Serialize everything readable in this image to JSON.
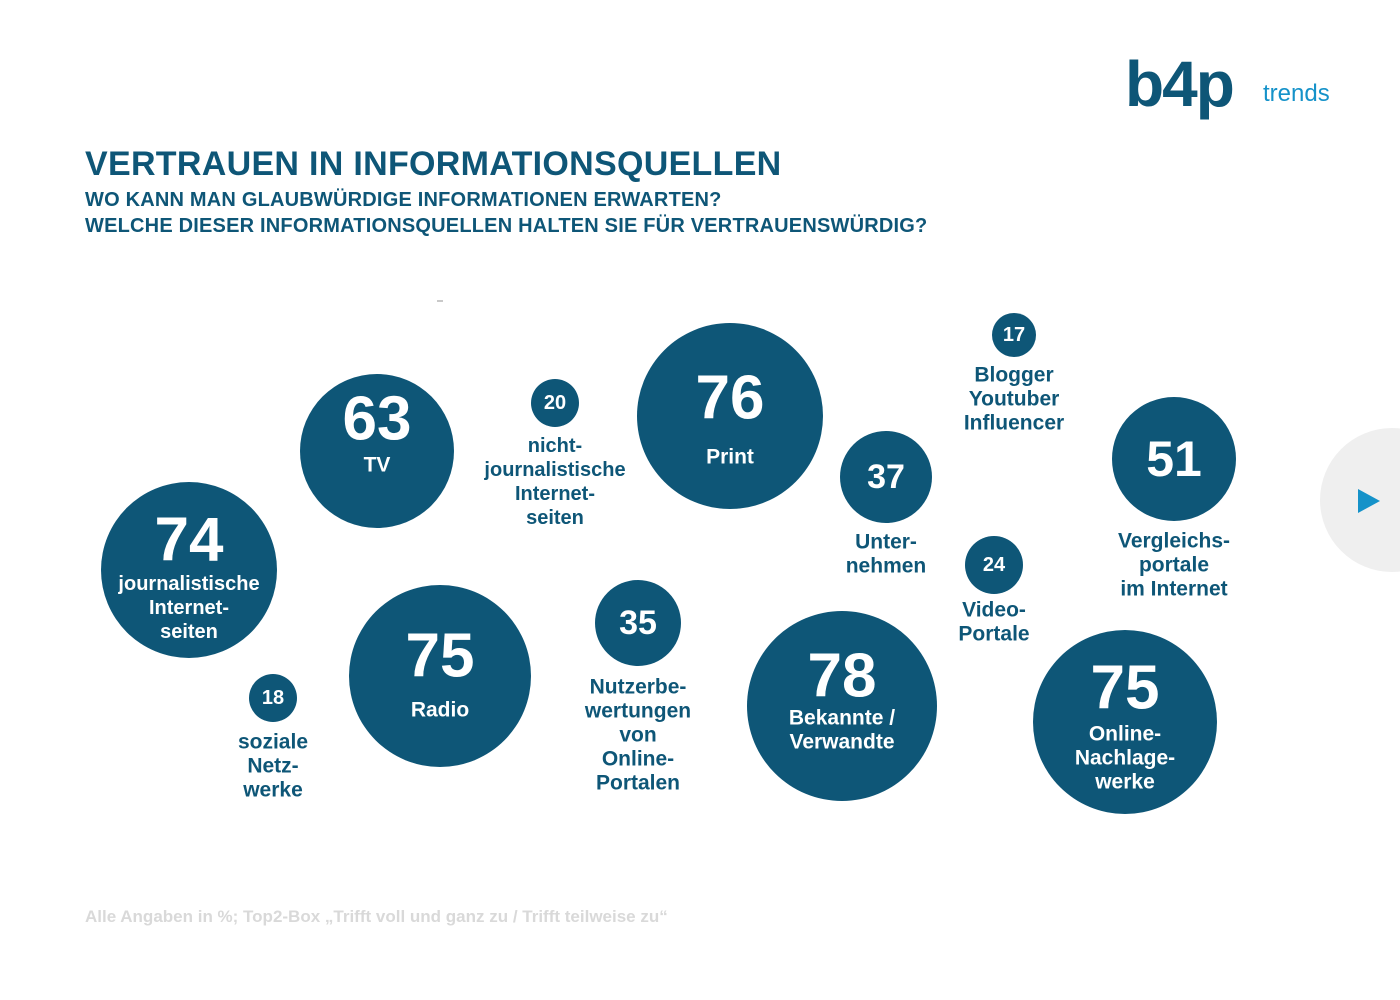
{
  "logo": {
    "brand": "b4p",
    "tagline": "trends"
  },
  "header": {
    "title": "VERTRAUEN IN INFORMATIONSQUELLEN",
    "subtitle_1": "WO KANN MAN GLAUBWÜRDIGE INFORMATIONEN ERWARTEN?",
    "subtitle_2": "WELCHE DIESER INFORMATIONSQUELLEN HALTEN SIE FÜR VERTRAUENSWÜRDIG?"
  },
  "footnote": "Alle Angaben in %; Top2-Box „Trifft voll und ganz zu / Trifft teilweise zu“",
  "colors": {
    "bubble": "#0e5677",
    "accent": "#1592c9",
    "footnote": "#d9d9d9"
  },
  "nav": {
    "icon": "play-arrow-icon"
  },
  "chart_data": {
    "type": "bubble",
    "unit": "%",
    "categories": [
      "TV",
      "nicht-journalistische Internetseiten",
      "Print",
      "Blogger Youtuber Influencer",
      "Vergleichsportale im Internet",
      "Unternehmen",
      "journalistische Internetseiten",
      "Radio",
      "Nutzerbewertungen von Online-Portalen",
      "Video-Portale",
      "Bekannte / Verwandte",
      "Online-Nachlagewerke",
      "soziale Netzwerke"
    ],
    "values": [
      63,
      20,
      76,
      17,
      51,
      37,
      74,
      75,
      35,
      24,
      78,
      75,
      18
    ],
    "items": [
      {
        "id": "tv",
        "value": 63,
        "label_lines": [
          "TV"
        ],
        "label_inside": true
      },
      {
        "id": "nicht-journalistische-internetseiten",
        "value": 20,
        "label_lines": [
          "nicht-",
          "journalistische",
          "Internet-",
          "seiten"
        ],
        "label_inside": false
      },
      {
        "id": "print",
        "value": 76,
        "label_lines": [
          "Print"
        ],
        "label_inside": true
      },
      {
        "id": "blogger-youtuber-influencer",
        "value": 17,
        "label_lines": [
          "Blogger",
          "Youtuber",
          "Influencer"
        ],
        "label_inside": false
      },
      {
        "id": "vergleichsportale",
        "value": 51,
        "label_lines": [
          "Vergleichs-",
          "portale",
          "im Internet"
        ],
        "label_inside": false
      },
      {
        "id": "unternehmen",
        "value": 37,
        "label_lines": [
          "Unter-",
          "nehmen"
        ],
        "label_inside": false
      },
      {
        "id": "journalistische-internetseiten",
        "value": 74,
        "label_lines": [
          "journalistische",
          "Internet-",
          "seiten"
        ],
        "label_inside": true
      },
      {
        "id": "radio",
        "value": 75,
        "label_lines": [
          "Radio"
        ],
        "label_inside": true
      },
      {
        "id": "nutzerbewertungen",
        "value": 35,
        "label_lines": [
          "Nutzerbe-",
          "wertungen",
          "von",
          "Online-",
          "Portalen"
        ],
        "label_inside": false
      },
      {
        "id": "video-portale",
        "value": 24,
        "label_lines": [
          "Video-",
          "Portale"
        ],
        "label_inside": false
      },
      {
        "id": "bekannte-verwandte",
        "value": 78,
        "label_lines": [
          "Bekannte /",
          "Verwandte"
        ],
        "label_inside": true
      },
      {
        "id": "online-nachlagewerke",
        "value": 75,
        "label_lines": [
          "Online-",
          "Nachlage-",
          "werke"
        ],
        "label_inside": true
      },
      {
        "id": "soziale-netzwerke",
        "value": 18,
        "label_lines": [
          "soziale",
          "Netz-",
          "werke"
        ],
        "label_inside": false
      }
    ]
  }
}
